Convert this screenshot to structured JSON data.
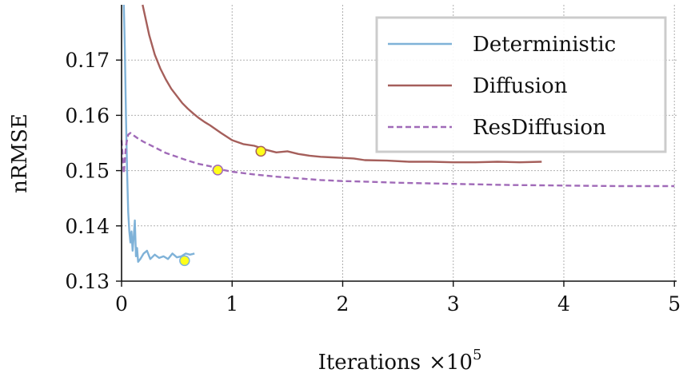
{
  "chart_data": {
    "type": "line",
    "title": "",
    "xlabel": "Iterations",
    "xlabel_multiplier": "×10",
    "xlabel_exponent": "5",
    "ylabel": "nRMSE",
    "xlim": [
      0,
      5.02
    ],
    "ylim": [
      0.13,
      0.18
    ],
    "xticks": [
      0,
      1,
      2,
      3,
      4,
      5
    ],
    "xtick_labels": [
      "0",
      "1",
      "2",
      "3",
      "4",
      "5"
    ],
    "yticks": [
      0.13,
      0.14,
      0.15,
      0.16,
      0.17
    ],
    "ytick_labels": [
      "0.13",
      "0.14",
      "0.15",
      "0.16",
      "0.17"
    ],
    "grid": true,
    "legend_position": "top-right",
    "series": [
      {
        "name": "Deterministic",
        "color": "#7fb2d8",
        "dash": "solid",
        "x": [
          0.02,
          0.03,
          0.04,
          0.05,
          0.06,
          0.07,
          0.08,
          0.09,
          0.1,
          0.11,
          0.12,
          0.13,
          0.14,
          0.15,
          0.17,
          0.2,
          0.23,
          0.26,
          0.3,
          0.34,
          0.38,
          0.42,
          0.46,
          0.5,
          0.54,
          0.58,
          0.62,
          0.66
        ],
        "y": [
          0.18,
          0.172,
          0.16,
          0.15,
          0.1425,
          0.139,
          0.137,
          0.139,
          0.1355,
          0.138,
          0.141,
          0.1345,
          0.136,
          0.1335,
          0.134,
          0.135,
          0.1355,
          0.134,
          0.1348,
          0.1342,
          0.1345,
          0.134,
          0.135,
          0.1343,
          0.1345,
          0.135,
          0.1348,
          0.135
        ]
      },
      {
        "name": "Diffusion",
        "color": "#a55f5b",
        "dash": "solid",
        "x": [
          0.19,
          0.25,
          0.3,
          0.35,
          0.4,
          0.45,
          0.5,
          0.55,
          0.6,
          0.65,
          0.7,
          0.75,
          0.8,
          0.9,
          1.0,
          1.1,
          1.2,
          1.3,
          1.4,
          1.5,
          1.6,
          1.7,
          1.8,
          1.9,
          2.0,
          2.1,
          2.2,
          2.4,
          2.6,
          2.8,
          3.0,
          3.2,
          3.4,
          3.6,
          3.8
        ],
        "y": [
          0.18,
          0.1745,
          0.171,
          0.1685,
          0.1665,
          0.1648,
          0.1635,
          0.1622,
          0.1612,
          0.1603,
          0.1595,
          0.1588,
          0.1582,
          0.1568,
          0.1555,
          0.1548,
          0.1545,
          0.1538,
          0.1533,
          0.1535,
          0.153,
          0.1527,
          0.1525,
          0.1524,
          0.1523,
          0.1522,
          0.1519,
          0.1518,
          0.1516,
          0.1516,
          0.1515,
          0.1515,
          0.1516,
          0.1515,
          0.1516
        ]
      },
      {
        "name": "ResDiffusion",
        "color": "#a06ab8",
        "dash": "dashed",
        "x": [
          0.0,
          0.02,
          0.04,
          0.06,
          0.08,
          0.1,
          0.15,
          0.2,
          0.3,
          0.4,
          0.5,
          0.6,
          0.7,
          0.8,
          0.9,
          1.0,
          1.2,
          1.4,
          1.6,
          1.8,
          2.0,
          2.2,
          2.5,
          3.0,
          3.5,
          4.0,
          4.5,
          5.0
        ],
        "y": [
          0.1555,
          0.1495,
          0.1545,
          0.1565,
          0.1568,
          0.1565,
          0.1558,
          0.1552,
          0.1542,
          0.1532,
          0.1525,
          0.1518,
          0.1512,
          0.1508,
          0.1502,
          0.1498,
          0.1493,
          0.1489,
          0.1486,
          0.1483,
          0.1481,
          0.148,
          0.1478,
          0.1476,
          0.1474,
          0.1473,
          0.1472,
          0.1472
        ]
      }
    ],
    "markers": [
      {
        "series": "Deterministic",
        "x": 0.57,
        "y": 0.1337,
        "fill": "#ffff1a",
        "edge": "#7fb2d8"
      },
      {
        "series": "ResDiffusion",
        "x": 0.87,
        "y": 0.1501,
        "fill": "#ffff1a",
        "edge": "#a06ab8"
      },
      {
        "series": "Diffusion",
        "x": 1.26,
        "y": 0.1535,
        "fill": "#ffff1a",
        "edge": "#a55f5b"
      }
    ]
  }
}
